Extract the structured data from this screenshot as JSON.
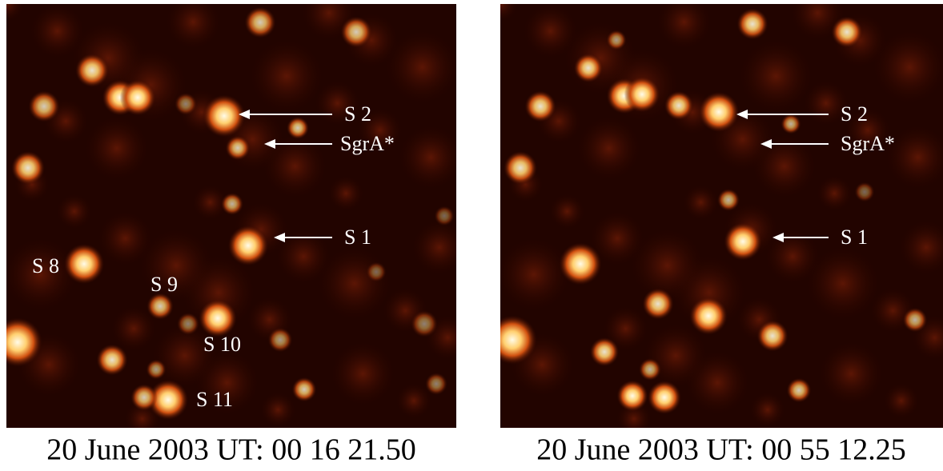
{
  "panels": [
    {
      "caption": "20 June 2003 UT: 00 16 21.50",
      "labels": [
        "S 2",
        "SgrA*",
        "S 1",
        "S 8",
        "S 9",
        "S 10",
        "S 11"
      ]
    },
    {
      "caption": "20 June 2003 UT: 00 55 12.25",
      "labels": [
        "S 2",
        "SgrA*",
        "S 1"
      ]
    }
  ]
}
